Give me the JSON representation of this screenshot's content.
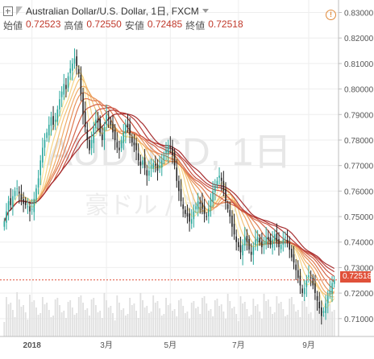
{
  "header": {
    "symbol_title": "Australian Dollar/U.S. Dollar, 1日, FXCM",
    "open_label": "始値",
    "open_value": "0.72523",
    "high_label": "高値",
    "high_value": "0.72550",
    "low_label": "安値",
    "low_value": "0.72485",
    "close_label": "終値",
    "close_value": "0.72518"
  },
  "watermark": {
    "line1": "AUDUSD, 1日",
    "line2": "豪ドル / 米ドル"
  },
  "last_price_tag": "0.72518",
  "colors": {
    "up": "#26a69a",
    "down": "#222222",
    "volume": "#e0e0e0",
    "ma": [
      "#fbe6a0",
      "#f7d486",
      "#f3c074",
      "#efaa66",
      "#e8925a",
      "#df7a50",
      "#d46448",
      "#c85040",
      "#b83c38",
      "#a62e30"
    ],
    "price_line": "#e0513a",
    "tag": "#e0513a"
  },
  "chart_data": {
    "type": "candlestick",
    "title": "Australian Dollar/U.S. Dollar, 1日, FXCM",
    "ylim": [
      0.703,
      0.833
    ],
    "y_ticks": [
      "0.83000",
      "0.82000",
      "0.81000",
      "0.80000",
      "0.79000",
      "0.78000",
      "0.77000",
      "0.76000",
      "0.75000",
      "0.74000",
      "0.73000",
      "0.72000",
      "0.71000"
    ],
    "x_ticks": [
      "2018",
      "3月",
      "5月",
      "7月",
      "9月"
    ],
    "last_price": 0.72518,
    "grid": true,
    "series_close": [
      0.748,
      0.752,
      0.756,
      0.7545,
      0.758,
      0.76,
      0.761,
      0.759,
      0.7565,
      0.755,
      0.7545,
      0.754,
      0.752,
      0.753,
      0.757,
      0.761,
      0.765,
      0.772,
      0.777,
      0.78,
      0.783,
      0.786,
      0.789,
      0.786,
      0.788,
      0.792,
      0.796,
      0.799,
      0.802,
      0.8,
      0.805,
      0.808,
      0.81,
      0.812,
      0.809,
      0.806,
      0.798,
      0.79,
      0.785,
      0.78,
      0.776,
      0.78,
      0.785,
      0.788,
      0.787,
      0.783,
      0.78,
      0.785,
      0.79,
      0.788,
      0.786,
      0.783,
      0.78,
      0.777,
      0.776,
      0.78,
      0.783,
      0.786,
      0.785,
      0.782,
      0.779,
      0.778,
      0.776,
      0.772,
      0.77,
      0.772,
      0.769,
      0.766,
      0.768,
      0.77,
      0.771,
      0.77,
      0.768,
      0.77,
      0.772,
      0.774,
      0.776,
      0.778,
      0.777,
      0.774,
      0.77,
      0.764,
      0.76,
      0.756,
      0.753,
      0.751,
      0.75,
      0.748,
      0.749,
      0.752,
      0.754,
      0.756,
      0.755,
      0.753,
      0.751,
      0.75,
      0.753,
      0.757,
      0.76,
      0.762,
      0.764,
      0.766,
      0.764,
      0.76,
      0.756,
      0.753,
      0.75,
      0.746,
      0.743,
      0.74,
      0.738,
      0.736,
      0.739,
      0.742,
      0.74,
      0.737,
      0.735,
      0.738,
      0.741,
      0.742,
      0.74,
      0.738,
      0.74,
      0.742,
      0.741,
      0.739,
      0.741,
      0.743,
      0.74,
      0.738,
      0.739,
      0.741,
      0.742,
      0.74,
      0.737,
      0.734,
      0.732,
      0.729,
      0.726,
      0.723,
      0.72,
      0.722,
      0.725,
      0.727,
      0.726,
      0.723,
      0.72,
      0.717,
      0.714,
      0.711,
      0.713,
      0.716,
      0.719,
      0.721,
      0.724,
      0.7252
    ]
  }
}
